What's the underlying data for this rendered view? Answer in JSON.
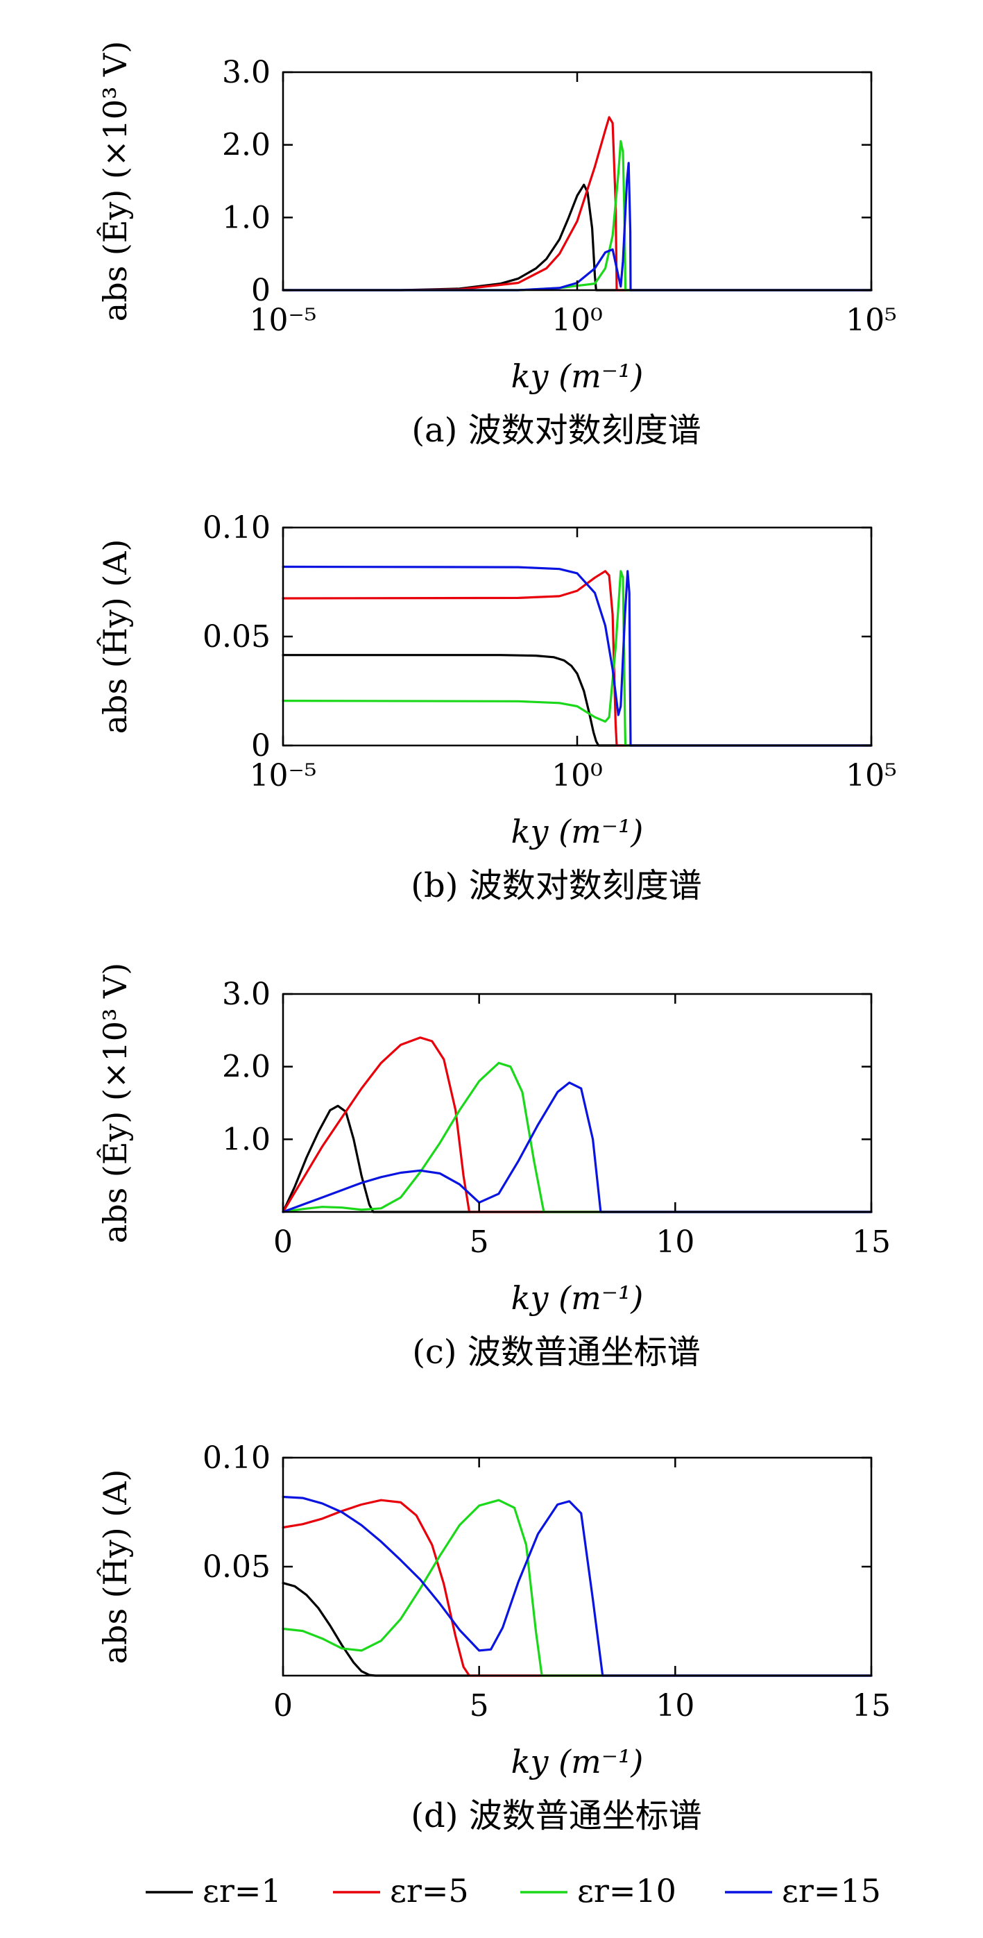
{
  "colors": {
    "er1": "#000000",
    "er5": "#e8000b",
    "er10": "#1bd81b",
    "er15": "#0a14e0"
  },
  "legend": [
    {
      "key": "er1",
      "label": "εr=1"
    },
    {
      "key": "er5",
      "label": "εr=5"
    },
    {
      "key": "er10",
      "label": "εr=10"
    },
    {
      "key": "er15",
      "label": "εr=15"
    }
  ],
  "chart_data": [
    {
      "id": "a",
      "type": "line",
      "caption": "(a) 波数对数刻度谱",
      "xlabel": "ky (m⁻¹)",
      "ylabel": "abs (Êy) (×10³ V)",
      "xscale": "log",
      "xlim": [
        1e-05,
        100000
      ],
      "ylim": [
        0,
        3.0
      ],
      "xticks": [
        {
          "v": 1e-05,
          "label": "10⁻⁵"
        },
        {
          "v": 1,
          "label": "10⁰"
        },
        {
          "v": 100000,
          "label": "10⁵"
        }
      ],
      "yticks": [
        {
          "v": 0,
          "label": "0"
        },
        {
          "v": 1.0,
          "label": "1.0"
        },
        {
          "v": 2.0,
          "label": "2.0"
        },
        {
          "v": 3.0,
          "label": "3.0"
        }
      ],
      "series": [
        {
          "key": "er1",
          "name": "εr=1",
          "x": [
            1e-05,
            0.001,
            0.01,
            0.05,
            0.1,
            0.2,
            0.3,
            0.5,
            0.7,
            1.0,
            1.3,
            1.5,
            1.8,
            2.0,
            2.1,
            100000
          ],
          "y": [
            0,
            0,
            0.02,
            0.09,
            0.16,
            0.3,
            0.43,
            0.7,
            0.98,
            1.3,
            1.45,
            1.35,
            0.85,
            0.2,
            0,
            0
          ]
        },
        {
          "key": "er5",
          "name": "εr=5",
          "x": [
            1e-05,
            0.001,
            0.01,
            0.1,
            0.3,
            0.5,
            1.0,
            2.0,
            3.0,
            3.5,
            4.0,
            4.5,
            4.7,
            100000
          ],
          "y": [
            0,
            0,
            0.01,
            0.1,
            0.3,
            0.5,
            0.95,
            1.7,
            2.2,
            2.38,
            2.3,
            1.2,
            0,
            0
          ]
        },
        {
          "key": "er10",
          "name": "εr=10",
          "x": [
            1e-05,
            0.1,
            0.5,
            1.0,
            2.0,
            3.0,
            4.0,
            5.0,
            5.5,
            6.0,
            6.4,
            6.6,
            100000
          ],
          "y": [
            0,
            0,
            0.03,
            0.06,
            0.09,
            0.3,
            0.75,
            1.6,
            2.05,
            1.9,
            0.9,
            0,
            0
          ]
        },
        {
          "key": "er15",
          "name": "εr=15",
          "x": [
            1e-05,
            0.1,
            0.5,
            1.0,
            2.0,
            3.0,
            4.0,
            5.0,
            5.5,
            6.0,
            7.0,
            7.5,
            8.0,
            8.1,
            100000
          ],
          "y": [
            0,
            0,
            0.03,
            0.1,
            0.3,
            0.52,
            0.56,
            0.2,
            0.05,
            0.4,
            1.5,
            1.75,
            0.8,
            0,
            0
          ]
        }
      ]
    },
    {
      "id": "b",
      "type": "line",
      "caption": "(b) 波数对数刻度谱",
      "xlabel": "ky (m⁻¹)",
      "ylabel": "abs (Ĥy) (A)",
      "xscale": "log",
      "xlim": [
        1e-05,
        100000
      ],
      "ylim": [
        0,
        0.1
      ],
      "xticks": [
        {
          "v": 1e-05,
          "label": "10⁻⁵"
        },
        {
          "v": 1,
          "label": "10⁰"
        },
        {
          "v": 100000,
          "label": "10⁵"
        }
      ],
      "yticks": [
        {
          "v": 0,
          "label": "0"
        },
        {
          "v": 0.05,
          "label": "0.05"
        },
        {
          "v": 0.1,
          "label": "0.10"
        }
      ],
      "series": [
        {
          "key": "er1",
          "name": "εr=1",
          "x": [
            1e-05,
            0.05,
            0.2,
            0.4,
            0.6,
            0.8,
            1.0,
            1.3,
            1.6,
            1.9,
            2.1,
            2.3,
            100000
          ],
          "y": [
            0.0415,
            0.0415,
            0.0412,
            0.0405,
            0.039,
            0.0365,
            0.033,
            0.025,
            0.015,
            0.006,
            0.002,
            0,
            0
          ]
        },
        {
          "key": "er5",
          "name": "εr=5",
          "x": [
            1e-05,
            0.1,
            0.5,
            1.0,
            2.0,
            3.0,
            3.5,
            4.0,
            4.5,
            4.7,
            100000
          ],
          "y": [
            0.0675,
            0.0677,
            0.0685,
            0.071,
            0.077,
            0.08,
            0.078,
            0.06,
            0.01,
            0,
            0
          ]
        },
        {
          "key": "er10",
          "name": "εr=10",
          "x": [
            1e-05,
            0.1,
            0.5,
            1.0,
            2.0,
            3.0,
            3.5,
            4.5,
            5.5,
            6.0,
            6.5,
            6.6,
            100000
          ],
          "y": [
            0.0205,
            0.0203,
            0.0195,
            0.018,
            0.013,
            0.011,
            0.013,
            0.045,
            0.08,
            0.077,
            0.01,
            0,
            0
          ]
        },
        {
          "key": "er15",
          "name": "εr=15",
          "x": [
            1e-05,
            0.1,
            0.5,
            1.0,
            2.0,
            3.0,
            4.0,
            5.0,
            5.5,
            6.5,
            7.2,
            7.7,
            8.1,
            100000
          ],
          "y": [
            0.082,
            0.0818,
            0.081,
            0.079,
            0.07,
            0.055,
            0.035,
            0.014,
            0.018,
            0.06,
            0.08,
            0.07,
            0,
            0
          ]
        }
      ]
    },
    {
      "id": "c",
      "type": "line",
      "caption": "(c) 波数普通坐标谱",
      "xlabel": "ky (m⁻¹)",
      "ylabel": "abs (Êy) (×10³ V)",
      "xscale": "linear",
      "xlim": [
        0,
        15
      ],
      "ylim": [
        0,
        3.0
      ],
      "xticks": [
        {
          "v": 0,
          "label": "0"
        },
        {
          "v": 5,
          "label": "5"
        },
        {
          "v": 10,
          "label": "10"
        },
        {
          "v": 15,
          "label": "15"
        }
      ],
      "yticks": [
        {
          "v": 1.0,
          "label": "1.0"
        },
        {
          "v": 2.0,
          "label": "2.0"
        },
        {
          "v": 3.0,
          "label": "3.0"
        }
      ],
      "series": [
        {
          "key": "er1",
          "name": "εr=1",
          "x": [
            0,
            0.3,
            0.6,
            0.9,
            1.2,
            1.4,
            1.6,
            1.8,
            2.0,
            2.2,
            2.3,
            15
          ],
          "y": [
            0,
            0.35,
            0.75,
            1.1,
            1.4,
            1.46,
            1.38,
            1.0,
            0.5,
            0.1,
            0,
            0
          ]
        },
        {
          "key": "er5",
          "name": "εr=5",
          "x": [
            0,
            0.5,
            1.0,
            1.5,
            2.0,
            2.5,
            3.0,
            3.5,
            3.8,
            4.1,
            4.4,
            4.6,
            4.75,
            15
          ],
          "y": [
            0,
            0.45,
            0.9,
            1.3,
            1.7,
            2.05,
            2.3,
            2.4,
            2.35,
            2.1,
            1.4,
            0.5,
            0,
            0
          ]
        },
        {
          "key": "er10",
          "name": "εr=10",
          "x": [
            0,
            0.5,
            1.0,
            1.5,
            2.0,
            2.5,
            3.0,
            3.5,
            4.0,
            4.5,
            5.0,
            5.5,
            5.8,
            6.1,
            6.4,
            6.65,
            15
          ],
          "y": [
            0,
            0.04,
            0.07,
            0.06,
            0.03,
            0.05,
            0.2,
            0.55,
            0.95,
            1.4,
            1.8,
            2.05,
            2.0,
            1.65,
            0.7,
            0,
            0
          ]
        },
        {
          "key": "er15",
          "name": "εr=15",
          "x": [
            0,
            0.5,
            1.0,
            1.5,
            2.0,
            2.5,
            3.0,
            3.5,
            4.0,
            4.5,
            5.0,
            5.5,
            6.0,
            6.5,
            7.0,
            7.3,
            7.6,
            7.9,
            8.1,
            15
          ],
          "y": [
            0,
            0.1,
            0.2,
            0.3,
            0.4,
            0.48,
            0.54,
            0.57,
            0.53,
            0.38,
            0.13,
            0.25,
            0.7,
            1.2,
            1.65,
            1.78,
            1.7,
            1.0,
            0,
            0
          ]
        }
      ]
    },
    {
      "id": "d",
      "type": "line",
      "caption": "(d) 波数普通坐标谱",
      "xlabel": "ky (m⁻¹)",
      "ylabel": "abs (Ĥy) (A)",
      "xscale": "linear",
      "xlim": [
        0,
        15
      ],
      "ylim": [
        0,
        0.1
      ],
      "xticks": [
        {
          "v": 0,
          "label": "0"
        },
        {
          "v": 5,
          "label": "5"
        },
        {
          "v": 10,
          "label": "10"
        },
        {
          "v": 15,
          "label": "15"
        }
      ],
      "yticks": [
        {
          "v": 0.05,
          "label": "0.05"
        },
        {
          "v": 0.1,
          "label": "0.10"
        }
      ],
      "series": [
        {
          "key": "er1",
          "name": "εr=1",
          "x": [
            0,
            0.3,
            0.6,
            0.9,
            1.2,
            1.5,
            1.8,
            2.0,
            2.2,
            2.35,
            15
          ],
          "y": [
            0.0425,
            0.041,
            0.037,
            0.031,
            0.023,
            0.014,
            0.006,
            0.002,
            0.0003,
            0,
            0
          ]
        },
        {
          "key": "er5",
          "name": "εr=5",
          "x": [
            0,
            0.5,
            1.0,
            1.5,
            2.0,
            2.5,
            3.0,
            3.4,
            3.8,
            4.1,
            4.4,
            4.6,
            4.75,
            15
          ],
          "y": [
            0.068,
            0.0695,
            0.072,
            0.0755,
            0.0785,
            0.0805,
            0.0795,
            0.0735,
            0.06,
            0.042,
            0.018,
            0.004,
            0,
            0
          ]
        },
        {
          "key": "er10",
          "name": "εr=10",
          "x": [
            0,
            0.5,
            1.0,
            1.5,
            2.0,
            2.5,
            3.0,
            3.5,
            4.0,
            4.5,
            5.0,
            5.5,
            5.9,
            6.2,
            6.45,
            6.6,
            15
          ],
          "y": [
            0.0215,
            0.0205,
            0.017,
            0.0125,
            0.0115,
            0.016,
            0.026,
            0.04,
            0.055,
            0.069,
            0.078,
            0.0805,
            0.077,
            0.06,
            0.02,
            0,
            0
          ]
        },
        {
          "key": "er15",
          "name": "εr=15",
          "x": [
            0,
            0.5,
            1.0,
            1.5,
            2.0,
            2.5,
            3.0,
            3.5,
            4.0,
            4.5,
            5.0,
            5.3,
            5.6,
            6.0,
            6.5,
            7.0,
            7.3,
            7.6,
            7.9,
            8.15,
            15
          ],
          "y": [
            0.082,
            0.0815,
            0.079,
            0.075,
            0.069,
            0.0615,
            0.053,
            0.044,
            0.033,
            0.021,
            0.0115,
            0.012,
            0.022,
            0.043,
            0.065,
            0.0785,
            0.08,
            0.0745,
            0.035,
            0,
            0
          ]
        }
      ]
    }
  ]
}
